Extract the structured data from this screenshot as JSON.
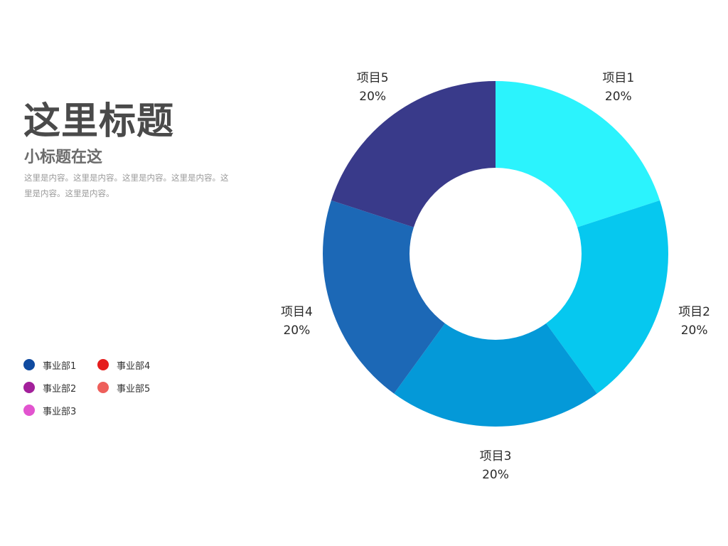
{
  "slide": {
    "title": "这里标题",
    "subtitle": "小标题在这",
    "body": "这里是内容。这里是内容。这里是内容。这里是内容。这里是内容。这里是内容。"
  },
  "legend": {
    "items": [
      {
        "label": "事业部1",
        "color": "#0f4aa0"
      },
      {
        "label": "事业部4",
        "color": "#e51d1d"
      },
      {
        "label": "事业部2",
        "color": "#a3209b"
      },
      {
        "label": "事业部5",
        "color": "#ee5f5b"
      },
      {
        "label": "事业部3",
        "color": "#e254cf"
      }
    ]
  },
  "chart_data": {
    "type": "pie",
    "donut": true,
    "categories": [
      "项目1",
      "项目2",
      "项目3",
      "项目4",
      "项目5"
    ],
    "values": [
      20,
      20,
      20,
      20,
      20
    ],
    "data_labels": [
      "20%",
      "20%",
      "20%",
      "20%",
      "20%"
    ],
    "colors": [
      "#2bf3fd",
      "#06c8ef",
      "#0499d8",
      "#1c68b6",
      "#393a8a"
    ]
  }
}
